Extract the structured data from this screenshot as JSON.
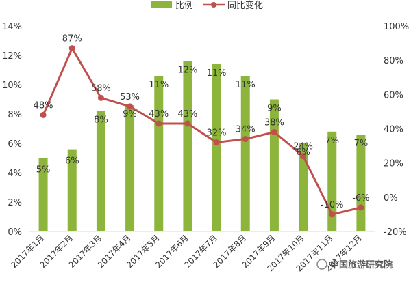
{
  "chart_data": {
    "type": "bar+line",
    "categories": [
      "2017年1月",
      "2017年2月",
      "2017年3月",
      "2017年4月",
      "2017年5月",
      "2017年6月",
      "2017年7月",
      "2017年8月",
      "2017年9月",
      "2017年10月",
      "2017年11月",
      "2017年12月"
    ],
    "series": [
      {
        "name": "比例",
        "type": "bar",
        "axis": "left",
        "color": "#8db53c",
        "values": [
          5.0,
          5.6,
          8.2,
          8.6,
          10.6,
          11.6,
          11.4,
          10.6,
          9.0,
          6.0,
          6.8,
          6.6
        ],
        "labels": [
          "5%",
          "6%",
          "8%",
          "9%",
          "11%",
          "12%",
          "11%",
          "11%",
          "9%",
          "6%",
          "7%",
          "7%"
        ]
      },
      {
        "name": "同比变化",
        "type": "line",
        "axis": "right",
        "color": "#c0504d",
        "values": [
          48,
          87,
          58,
          53,
          43,
          43,
          32,
          34,
          38,
          24,
          -10,
          -6
        ],
        "labels": [
          "48%",
          "87%",
          "58%",
          "53%",
          "43%",
          "43%",
          "32%",
          "34%",
          "38%",
          "24%",
          "-10%",
          "-6%"
        ]
      }
    ],
    "y_left": {
      "min": 0,
      "max": 14,
      "ticks": [
        "0%",
        "2%",
        "4%",
        "6%",
        "8%",
        "10%",
        "12%",
        "14%"
      ]
    },
    "y_right": {
      "min": -20,
      "max": 100,
      "ticks": [
        "-20%",
        "0%",
        "20%",
        "40%",
        "60%",
        "80%",
        "100%"
      ]
    },
    "grid": false,
    "legend_position": "top"
  },
  "watermark": {
    "text": "中国旅游研究院"
  }
}
